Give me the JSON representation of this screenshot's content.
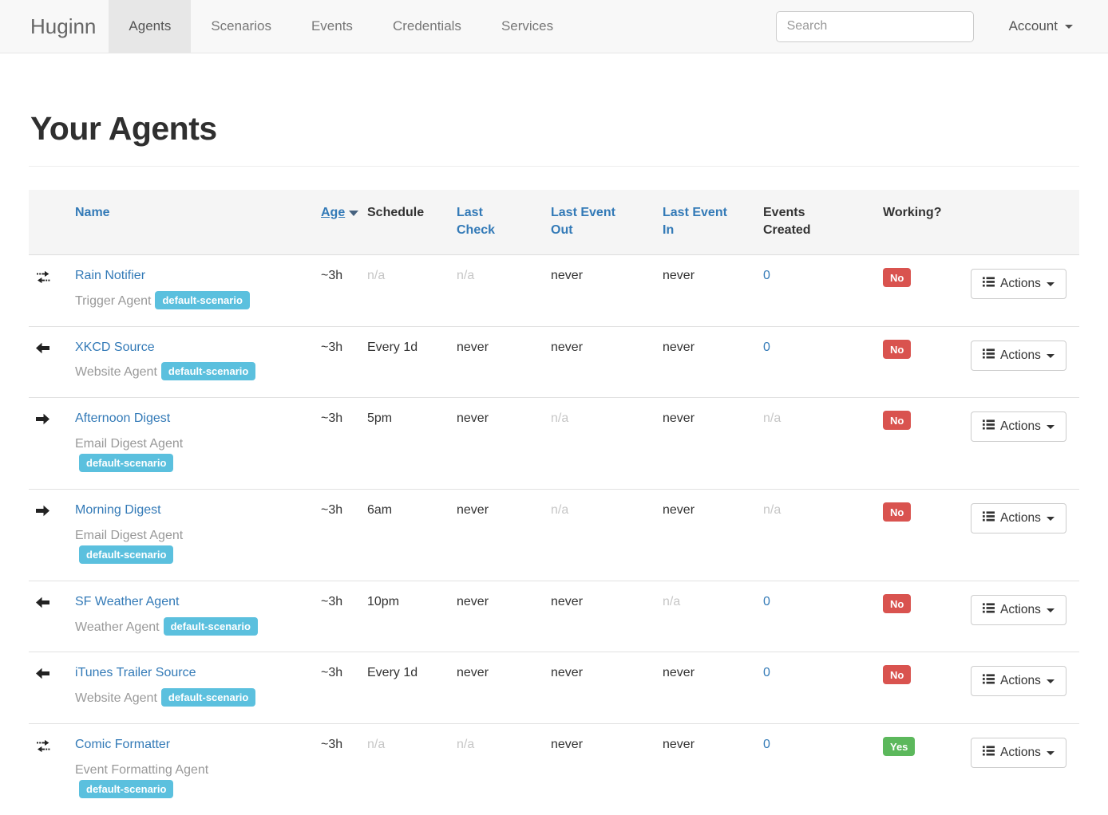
{
  "navbar": {
    "brand": "Huginn",
    "items": [
      {
        "label": "Agents",
        "active": true
      },
      {
        "label": "Scenarios",
        "active": false
      },
      {
        "label": "Events",
        "active": false
      },
      {
        "label": "Credentials",
        "active": false
      },
      {
        "label": "Services",
        "active": false
      }
    ],
    "search_placeholder": "Search",
    "account_label": "Account"
  },
  "page": {
    "title": "Your Agents"
  },
  "table": {
    "headers": {
      "name": "Name",
      "age": "Age",
      "schedule": "Schedule",
      "last_check": "Last Check",
      "last_event_out": "Last Event Out",
      "last_event_in": "Last Event In",
      "events_created": "Events Created",
      "working": "Working?"
    },
    "sort": {
      "column": "Age",
      "direction": "desc"
    },
    "actions_label": "Actions",
    "rows": [
      {
        "icon": "exchange-arrows",
        "name": "Rain Notifier",
        "type": "Trigger Agent",
        "badges": [
          "default-scenario"
        ],
        "age": "~3h",
        "schedule": "n/a",
        "last_check": "n/a",
        "last_event_out": "never",
        "last_event_in": "never",
        "events_created": "0",
        "working": "No"
      },
      {
        "icon": "arrow-left",
        "name": "XKCD Source",
        "type": "Website Agent",
        "badges": [
          "default-scenario"
        ],
        "age": "~3h",
        "schedule": "Every 1d",
        "last_check": "never",
        "last_event_out": "never",
        "last_event_in": "never",
        "events_created": "0",
        "working": "No"
      },
      {
        "icon": "arrow-right",
        "name": "Afternoon Digest",
        "type": "Email Digest Agent",
        "badges": [
          "default-scenario"
        ],
        "age": "~3h",
        "schedule": "5pm",
        "last_check": "never",
        "last_event_out": "n/a",
        "last_event_in": "never",
        "events_created": "n/a",
        "working": "No"
      },
      {
        "icon": "arrow-right",
        "name": "Morning Digest",
        "type": "Email Digest Agent",
        "badges": [
          "default-scenario"
        ],
        "age": "~3h",
        "schedule": "6am",
        "last_check": "never",
        "last_event_out": "n/a",
        "last_event_in": "never",
        "events_created": "n/a",
        "working": "No"
      },
      {
        "icon": "arrow-left",
        "name": "SF Weather Agent",
        "type": "Weather Agent",
        "badges": [
          "default-scenario"
        ],
        "age": "~3h",
        "schedule": "10pm",
        "last_check": "never",
        "last_event_out": "never",
        "last_event_in": "n/a",
        "events_created": "0",
        "working": "No"
      },
      {
        "icon": "arrow-left",
        "name": "iTunes Trailer Source",
        "type": "Website Agent",
        "badges": [
          "default-scenario"
        ],
        "age": "~3h",
        "schedule": "Every 1d",
        "last_check": "never",
        "last_event_out": "never",
        "last_event_in": "never",
        "events_created": "0",
        "working": "No"
      },
      {
        "icon": "exchange-arrows",
        "name": "Comic Formatter",
        "type": "Event Formatting Agent",
        "badges": [
          "default-scenario"
        ],
        "age": "~3h",
        "schedule": "n/a",
        "last_check": "n/a",
        "last_event_out": "never",
        "last_event_in": "never",
        "events_created": "0",
        "working": "Yes"
      }
    ]
  },
  "colors": {
    "link": "#337ab7",
    "badge_info": "#5bc0de",
    "badge_danger": "#d9534f",
    "badge_success": "#5cb85c",
    "navbar_bg": "#f8f8f8",
    "navbar_active_bg": "#e7e7e7",
    "table_header_bg": "#f5f5f5"
  }
}
